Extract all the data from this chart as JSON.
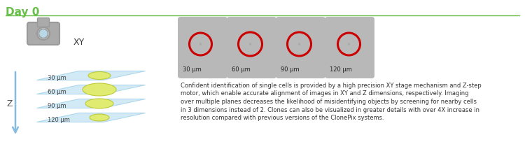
{
  "title": "Day 0",
  "title_color": "#6abf4b",
  "title_fontsize": 11,
  "background_color": "#ffffff",
  "separator_color": "#6abf4b",
  "z_label": "Z",
  "xy_label": "XY",
  "z_levels": [
    "30 μm",
    "60 μm",
    "90 μm",
    "120 μm"
  ],
  "image_labels": [
    "30 μm",
    "60 μm",
    "90 μm",
    "120 μm"
  ],
  "description_lines": [
    "Confident identification of single cells is provided by a high precision XY stage mechanism and Z-step",
    "motor, which enable accurate alignment of images in XY and Z dimensions, respectively. Imaging",
    "over multiple planes decreases the likelihood of misidentifying objects by screening for nearby cells",
    "in 3 dimensions instead of 2. Clones can also be visualized in greater details with over 4X increase in",
    "resolution compared with previous versions of the ClonePix systems."
  ],
  "plane_color": "#cce8f4",
  "plane_edge_color": "#a8d4ea",
  "ellipse_color": "#e0ed6a",
  "ellipse_edge_color": "#bcc832",
  "circle_color": "#cc0000",
  "img_bg_color": "#b8b8b8",
  "arrow_color": "#88bbdd",
  "camera_body_color": "#999999",
  "camera_lens_color": "#b8d8e8",
  "text_color": "#333333"
}
